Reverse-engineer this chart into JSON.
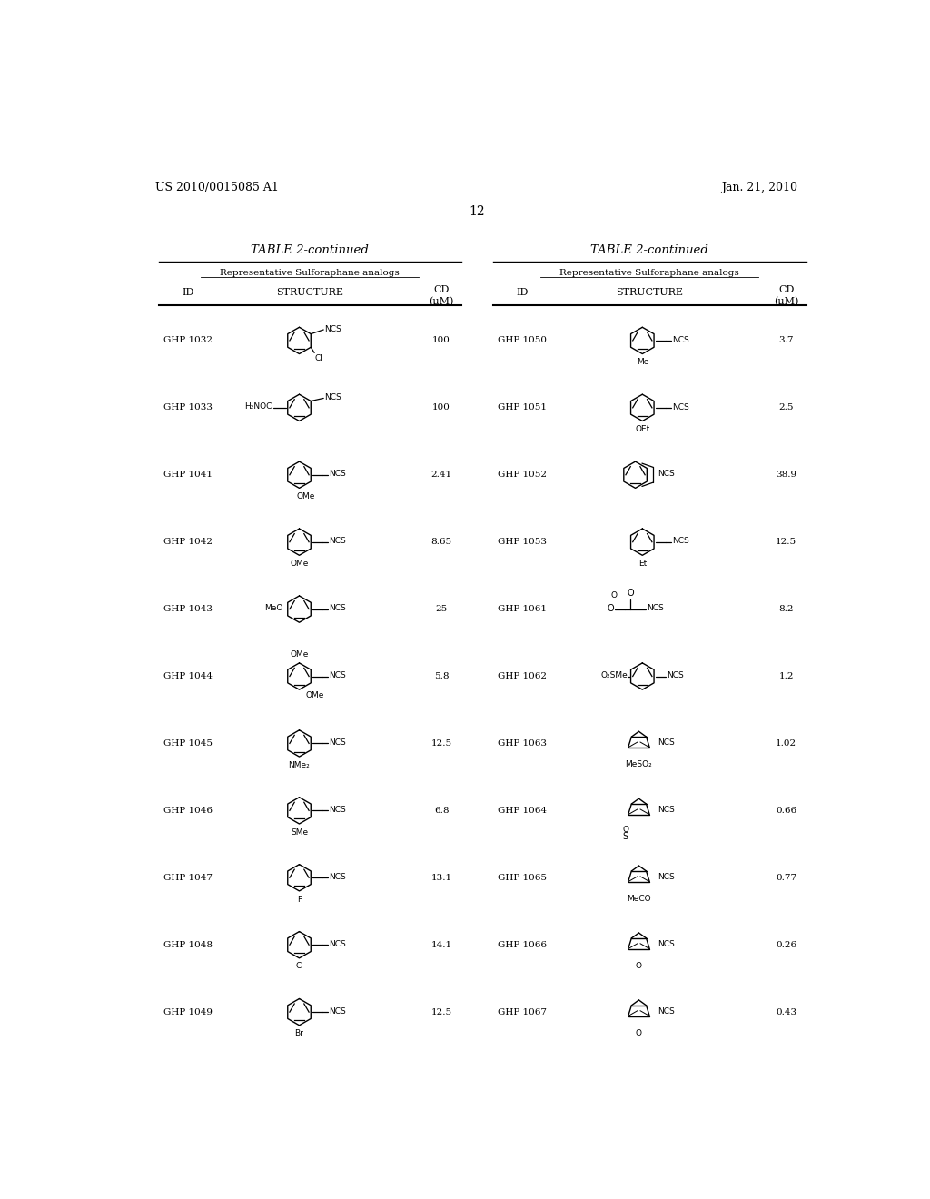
{
  "background_color": "#ffffff",
  "header_left": "US 2010/0015085 A1",
  "header_right": "Jan. 21, 2010",
  "page_number": "12",
  "table_title": "TABLE 2-continued",
  "table_subtitle": "Representative Sulforaphane analogs",
  "text_color": "#000000",
  "left_entries": [
    {
      "id": "GHP 1032",
      "cd": "100"
    },
    {
      "id": "GHP 1033",
      "cd": "100"
    },
    {
      "id": "GHP 1041",
      "cd": "2.41"
    },
    {
      "id": "GHP 1042",
      "cd": "8.65"
    },
    {
      "id": "GHP 1043",
      "cd": "25"
    },
    {
      "id": "GHP 1044",
      "cd": "5.8"
    },
    {
      "id": "GHP 1045",
      "cd": "12.5"
    },
    {
      "id": "GHP 1046",
      "cd": "6.8"
    },
    {
      "id": "GHP 1047",
      "cd": "13.1"
    },
    {
      "id": "GHP 1048",
      "cd": "14.1"
    },
    {
      "id": "GHP 1049",
      "cd": "12.5"
    }
  ],
  "right_entries": [
    {
      "id": "GHP 1050",
      "cd": "3.7"
    },
    {
      "id": "GHP 1051",
      "cd": "2.5"
    },
    {
      "id": "GHP 1052",
      "cd": "38.9"
    },
    {
      "id": "GHP 1053",
      "cd": "12.5"
    },
    {
      "id": "GHP 1061",
      "cd": "8.2"
    },
    {
      "id": "GHP 1062",
      "cd": "1.2"
    },
    {
      "id": "GHP 1063",
      "cd": "1.02"
    },
    {
      "id": "GHP 1064",
      "cd": "0.66"
    },
    {
      "id": "GHP 1065",
      "cd": "0.77"
    },
    {
      "id": "GHP 1066",
      "cd": "0.26"
    },
    {
      "id": "GHP 1067",
      "cd": "0.43"
    }
  ]
}
